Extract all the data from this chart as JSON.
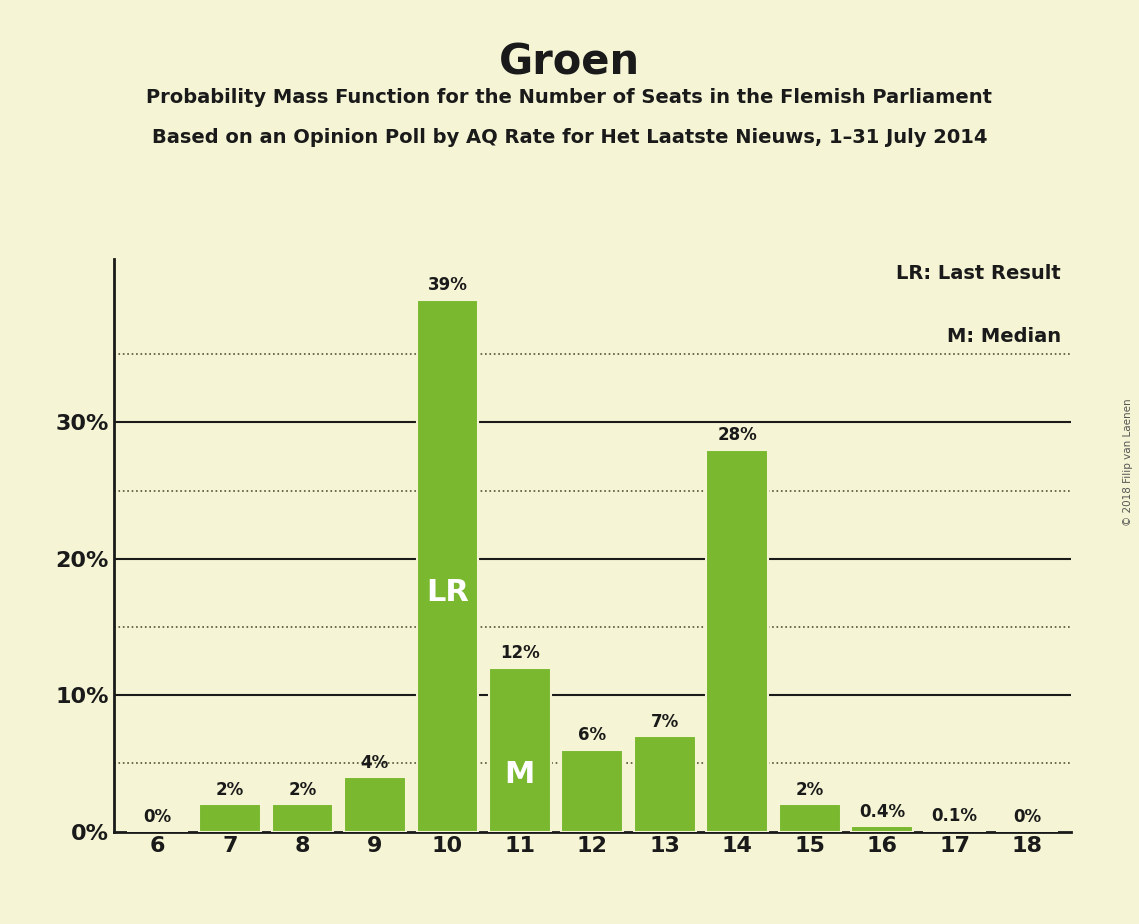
{
  "title": "Groen",
  "subtitle_line1": "Probability Mass Function for the Number of Seats in the Flemish Parliament",
  "subtitle_line2": "Based on an Opinion Poll by AQ Rate for Het Laatste Nieuws, 1–31 July 2014",
  "copyright": "© 2018 Filip van Laenen",
  "categories": [
    6,
    7,
    8,
    9,
    10,
    11,
    12,
    13,
    14,
    15,
    16,
    17,
    18
  ],
  "values": [
    0.0,
    2.0,
    2.0,
    4.0,
    39.0,
    12.0,
    6.0,
    7.0,
    28.0,
    2.0,
    0.4,
    0.1,
    0.0
  ],
  "bar_labels": [
    "0%",
    "2%",
    "2%",
    "4%",
    "39%",
    "12%",
    "6%",
    "7%",
    "28%",
    "2%",
    "0.4%",
    "0.1%",
    "0%"
  ],
  "bar_color": "#7ab830",
  "background_color": "#f5f5d5",
  "text_color": "#1a1a1a",
  "lr_bar": 10,
  "median_bar": 11,
  "legend_lr": "LR: Last Result",
  "legend_m": "M: Median",
  "solid_gridlines": [
    10,
    20,
    30
  ],
  "dotted_gridlines": [
    5,
    15,
    25,
    35
  ],
  "ylim": [
    0,
    42
  ],
  "yticks": [
    0,
    10,
    20,
    30
  ],
  "ytick_labels": [
    "0%",
    "10%",
    "20%",
    "30%"
  ]
}
